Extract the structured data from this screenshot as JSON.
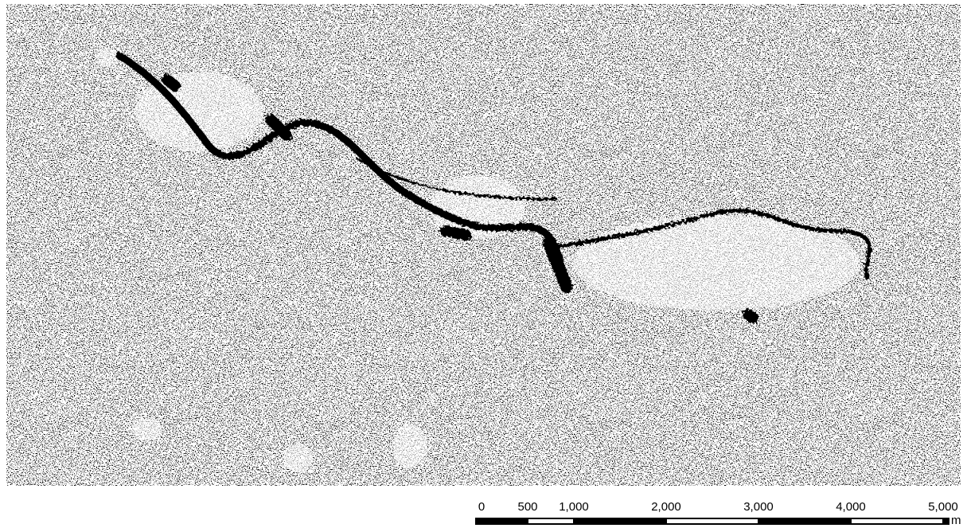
{
  "scale_bar": {
    "unit": "m",
    "xlim": [
      0,
      5000
    ],
    "ticks": [
      0,
      500,
      {
        "value": 1000,
        "label": "1,000"
      },
      {
        "value": 2000,
        "label": "2,000"
      },
      {
        "value": 3000,
        "label": "3,000"
      },
      {
        "value": 4000,
        "label": "4,000"
      },
      {
        "value": 5000,
        "label": "5,000"
      }
    ]
  }
}
